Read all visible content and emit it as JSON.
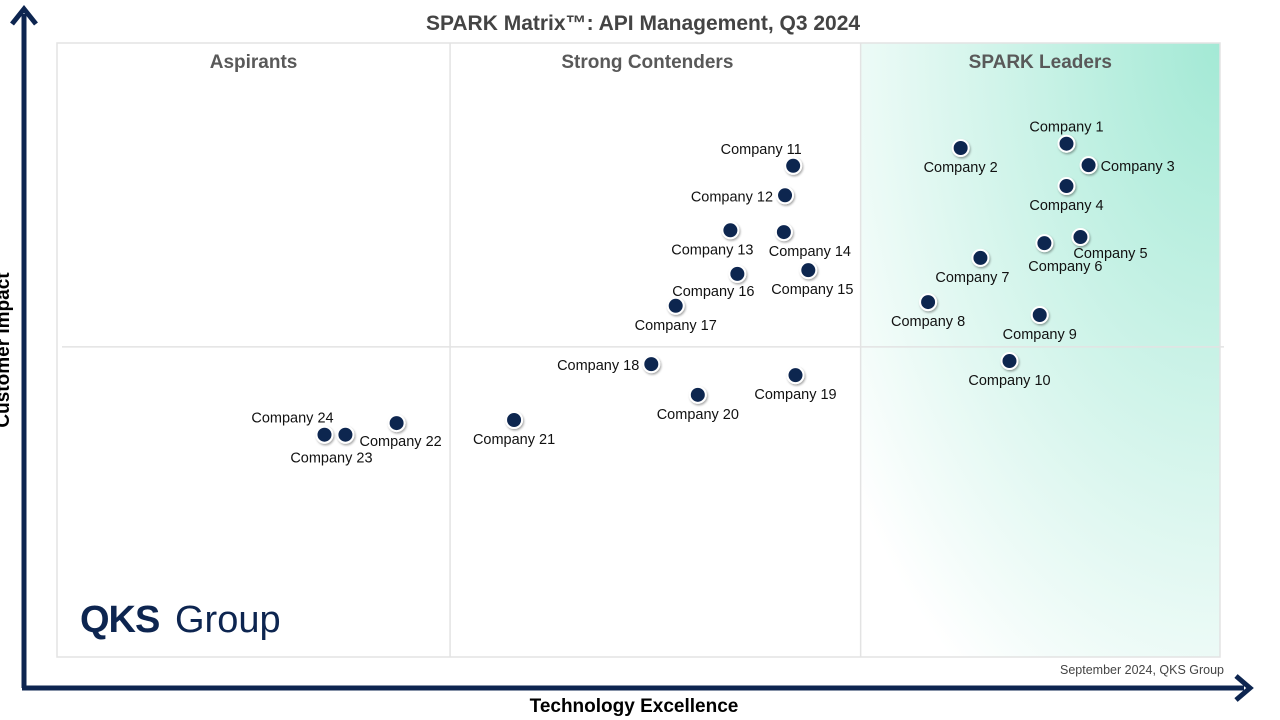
{
  "chart_data": {
    "type": "scatter",
    "title": "SPARK Matrix™: API Management, Q3 2024",
    "xlabel": "Technology Excellence",
    "ylabel": "Customer Impact",
    "xlim": [
      0,
      100
    ],
    "ylim": [
      0,
      100
    ],
    "grid": false,
    "quadrant_x_bounds": [
      33.8,
      69.1
    ],
    "quadrant_y_bound": 50.5,
    "quadrants": [
      "Aspirants",
      "Strong Contenders",
      "SPARK Leaders"
    ],
    "source": "September 2024, QKS Group",
    "logo": "QKS Group",
    "colors": {
      "point": "#0d2550",
      "axis": "#0d2550",
      "leaders_gradient": "#a3e9d5"
    },
    "points": [
      {
        "name": "Company 1",
        "x": 86.8,
        "y": 83.6,
        "label_position": "above"
      },
      {
        "name": "Company 2",
        "x": 77.7,
        "y": 82.9,
        "label_position": "below"
      },
      {
        "name": "Company 3",
        "x": 88.7,
        "y": 80.1,
        "label_position": "right"
      },
      {
        "name": "Company 4",
        "x": 86.8,
        "y": 76.7,
        "label_position": "below"
      },
      {
        "name": "Company 5",
        "x": 88.0,
        "y": 68.4,
        "label_position": "below-right"
      },
      {
        "name": "Company 6",
        "x": 84.9,
        "y": 67.4,
        "label_position": "below"
      },
      {
        "name": "Company 7",
        "x": 79.4,
        "y": 65.0,
        "label_position": "below"
      },
      {
        "name": "Company 8",
        "x": 74.9,
        "y": 57.8,
        "label_position": "below"
      },
      {
        "name": "Company 9",
        "x": 84.5,
        "y": 55.7,
        "label_position": "below"
      },
      {
        "name": "Company 10",
        "x": 81.9,
        "y": 48.2,
        "label_position": "below"
      },
      {
        "name": "Company 11",
        "x": 63.3,
        "y": 80.0,
        "label_position": "above-left"
      },
      {
        "name": "Company 12",
        "x": 62.6,
        "y": 75.2,
        "label_position": "left"
      },
      {
        "name": "Company 13",
        "x": 57.9,
        "y": 69.5,
        "label_position": "below"
      },
      {
        "name": "Company 14",
        "x": 62.5,
        "y": 69.2,
        "label_position": "below"
      },
      {
        "name": "Company 15",
        "x": 64.6,
        "y": 63.0,
        "label_position": "below"
      },
      {
        "name": "Company 16",
        "x": 58.5,
        "y": 62.4,
        "label_position": "below"
      },
      {
        "name": "Company 17",
        "x": 53.2,
        "y": 57.2,
        "label_position": "below"
      },
      {
        "name": "Company 18",
        "x": 51.1,
        "y": 47.7,
        "label_position": "left"
      },
      {
        "name": "Company 19",
        "x": 63.5,
        "y": 45.9,
        "label_position": "below"
      },
      {
        "name": "Company 20",
        "x": 55.1,
        "y": 42.7,
        "label_position": "below"
      },
      {
        "name": "Company 21",
        "x": 39.3,
        "y": 38.6,
        "label_position": "below"
      },
      {
        "name": "Company 22",
        "x": 29.2,
        "y": 38.1,
        "label_position": "below"
      },
      {
        "name": "Company 23",
        "x": 24.8,
        "y": 36.2,
        "label_position": "below"
      },
      {
        "name": "Company 24",
        "x": 23.0,
        "y": 36.2,
        "label_position": "above-left"
      }
    ]
  }
}
